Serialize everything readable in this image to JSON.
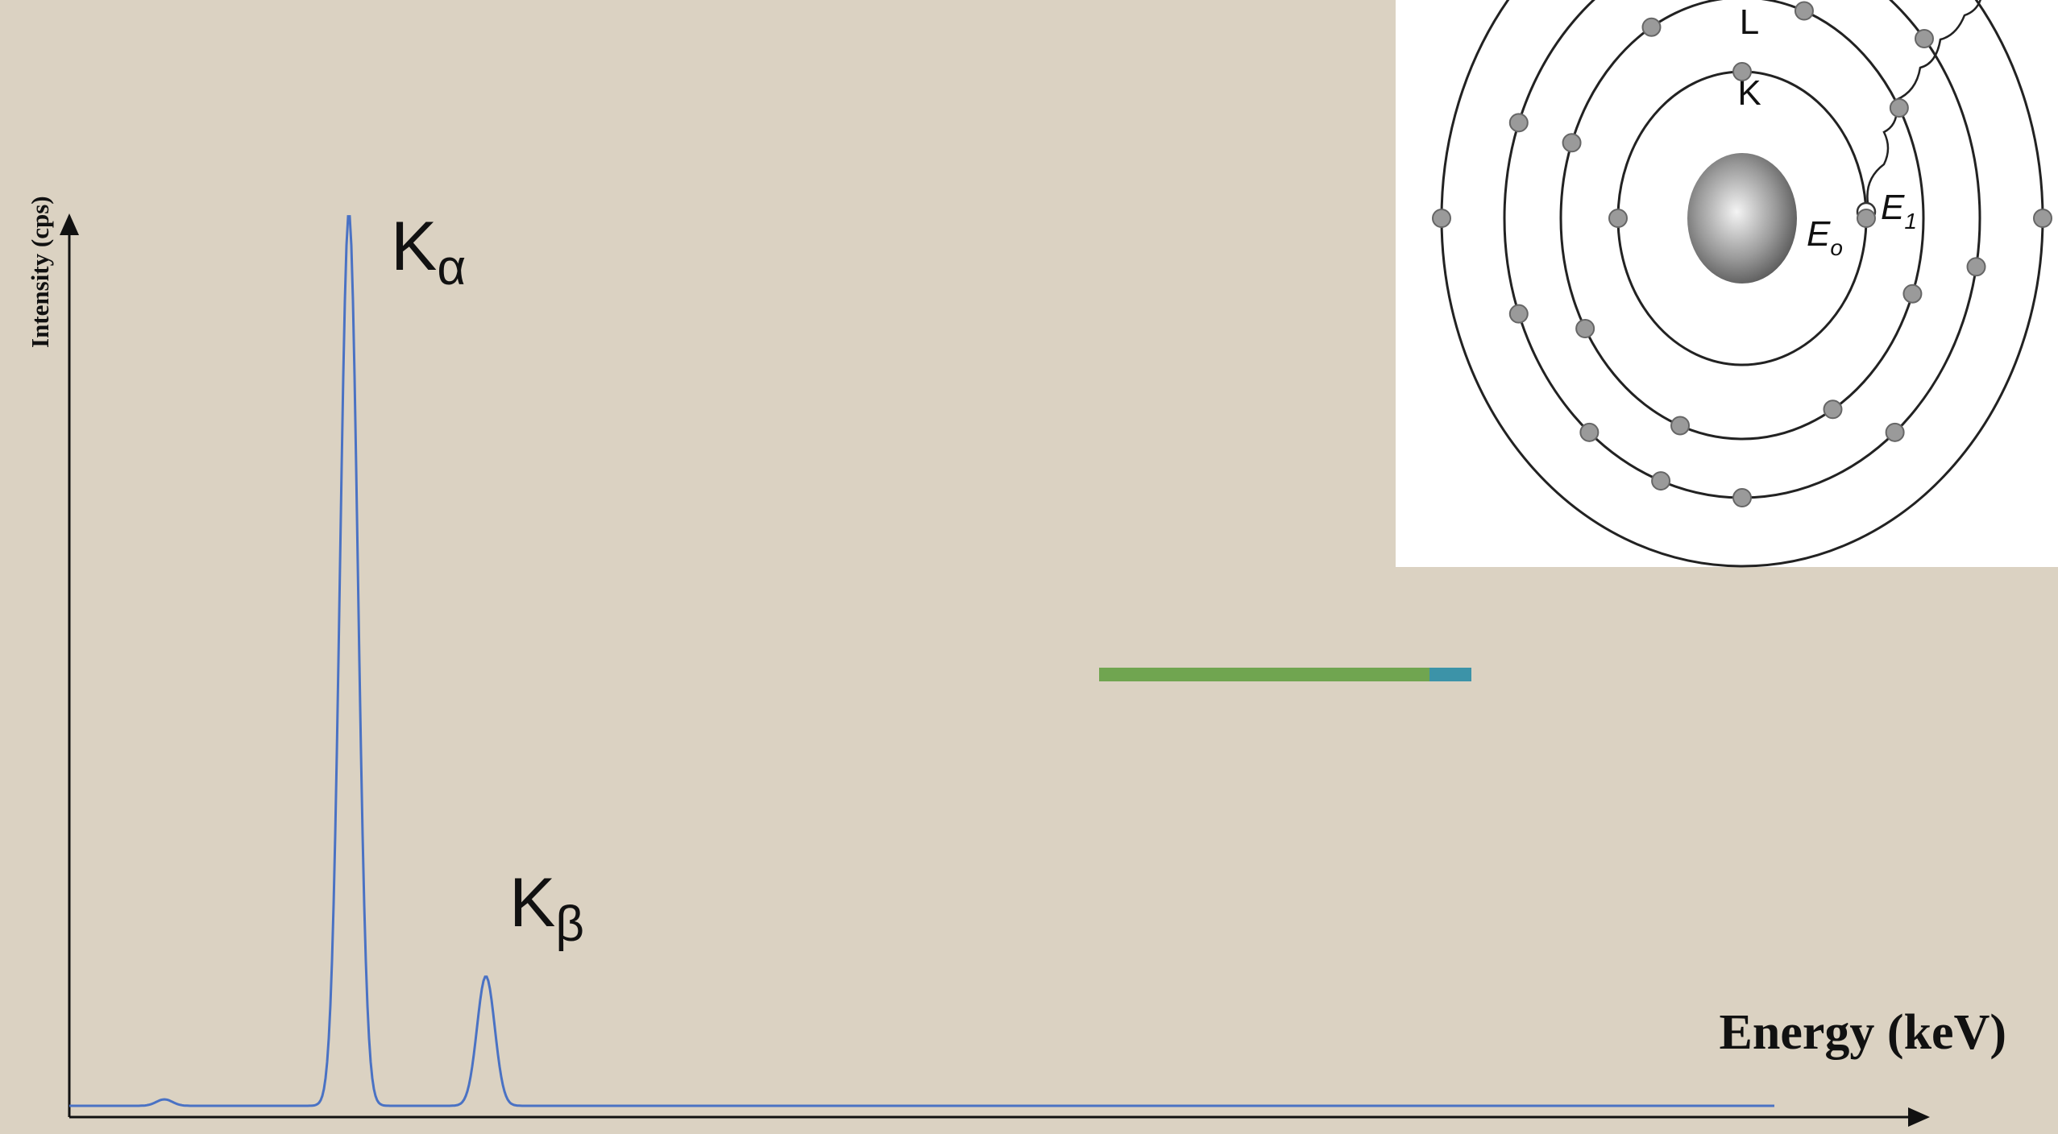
{
  "spectrum": {
    "y_axis_label": "Intensity (cps)",
    "x_axis_label": "Energy (keV)",
    "peaks": [
      {
        "symbol": "K",
        "subscript": "α"
      },
      {
        "symbol": "K",
        "subscript": "β"
      }
    ]
  },
  "atom_diagram": {
    "shells": [
      "L",
      "K"
    ],
    "energies": [
      {
        "symbol": "E",
        "subscript": "o"
      },
      {
        "symbol": "E",
        "subscript": "1"
      }
    ]
  }
}
